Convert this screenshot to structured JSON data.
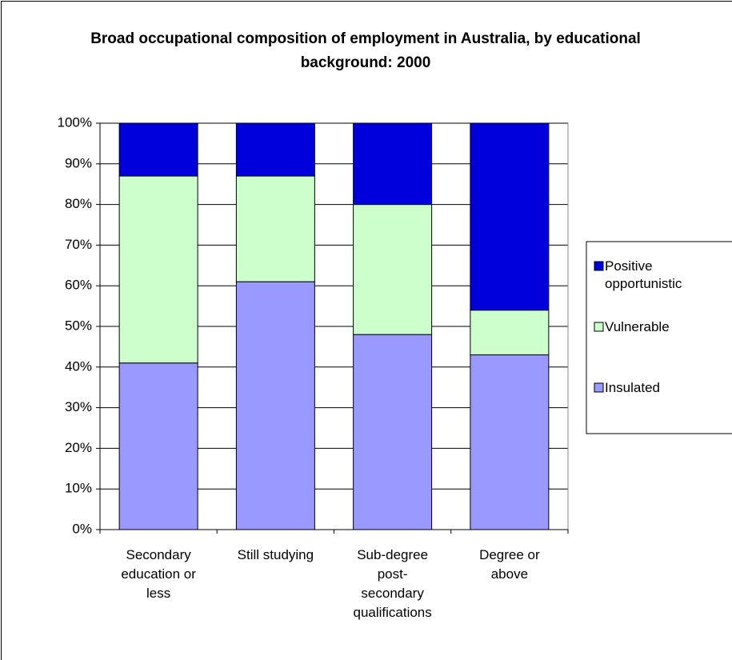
{
  "chart_data": {
    "type": "stacked_bar",
    "title": "Broad occupational composition of employment in Australia, by educational background: 2000",
    "categories": [
      "Secondary education or less",
      "Still studying",
      "Sub-degree post-secondary qualifications",
      "Degree or above"
    ],
    "series": [
      {
        "name": "Insulated",
        "color": "#9999ff",
        "values": [
          41,
          61,
          48,
          43
        ]
      },
      {
        "name": "Vulnerable",
        "color": "#ccffcc",
        "values": [
          46,
          26,
          32,
          11
        ]
      },
      {
        "name": "Positive opportunistic",
        "color": "#0000dd",
        "values": [
          13,
          13,
          20,
          46
        ]
      }
    ],
    "ylim": [
      0,
      100
    ],
    "yticks": [
      {
        "value": 0,
        "label": "0%"
      },
      {
        "value": 10,
        "label": "10%"
      },
      {
        "value": 20,
        "label": "20%"
      },
      {
        "value": 30,
        "label": "30%"
      },
      {
        "value": 40,
        "label": "40%"
      },
      {
        "value": 50,
        "label": "50%"
      },
      {
        "value": 60,
        "label": "60%"
      },
      {
        "value": 70,
        "label": "70%"
      },
      {
        "value": 80,
        "label": "80%"
      },
      {
        "value": 90,
        "label": "90%"
      },
      {
        "value": 100,
        "label": "100%"
      }
    ],
    "grid": true,
    "legend": "right"
  }
}
